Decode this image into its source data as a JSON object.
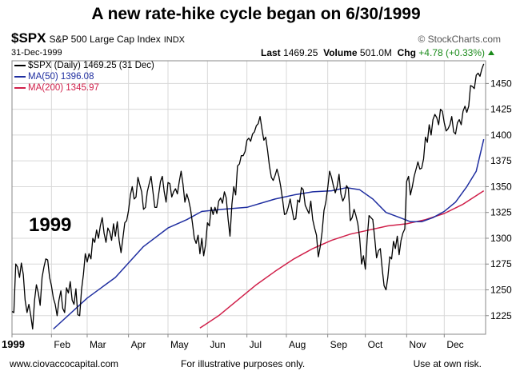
{
  "header": {
    "title": "A new rate-hike cycle began on 6/30/1999",
    "symbol": "$SPX",
    "name": "S&P 500 Large Cap Index",
    "exchange": "INDX",
    "credit": "© StockCharts.com",
    "date": "31-Dec-1999",
    "last_label": "Last",
    "last_value": "1469.25",
    "volume_label": "Volume",
    "volume_value": "501.0M",
    "chg_label": "Chg",
    "chg_value": "+4.78 (+0.33%)"
  },
  "legend": {
    "price": "$SPX (Daily) 1469.25 (31 Dec)",
    "ma50": "MA(50) 1396.08",
    "ma200": "MA(200) 1345.97"
  },
  "annotation": "1999",
  "footer": {
    "left": "www.ciovaccocapital.com",
    "center": "For illustrative purposes only.",
    "right": "Use at own risk."
  },
  "colors": {
    "price": "#000000",
    "ma50": "#1f2ea0",
    "ma200": "#d0204a",
    "grid": "#d8d8d8",
    "up": "#1a8a1a"
  },
  "chart_data": {
    "type": "line",
    "x_ticks": [
      "1999",
      "Feb",
      "Mar",
      "Apr",
      "May",
      "Jun",
      "Jul",
      "Aug",
      "Sep",
      "Oct",
      "Nov",
      "Dec"
    ],
    "x_tick_days": [
      0,
      21,
      40,
      62,
      83,
      104,
      125,
      146,
      168,
      188,
      210,
      230
    ],
    "x_range": [
      0,
      252
    ],
    "y_ticks": [
      1225,
      1250,
      1275,
      1300,
      1325,
      1350,
      1375,
      1400,
      1425,
      1450
    ],
    "ylim": [
      1207,
      1472
    ],
    "grid": true,
    "series": [
      {
        "name": "$SPX (Daily)",
        "key": "price",
        "points": [
          [
            0,
            1229
          ],
          [
            1,
            1228
          ],
          [
            2,
            1275
          ],
          [
            3,
            1272
          ],
          [
            4,
            1262
          ],
          [
            5,
            1276
          ],
          [
            6,
            1265
          ],
          [
            7,
            1240
          ],
          [
            8,
            1228
          ],
          [
            9,
            1236
          ],
          [
            10,
            1225
          ],
          [
            11,
            1212
          ],
          [
            12,
            1240
          ],
          [
            13,
            1255
          ],
          [
            14,
            1247
          ],
          [
            15,
            1235
          ],
          [
            16,
            1262
          ],
          [
            17,
            1272
          ],
          [
            18,
            1280
          ],
          [
            19,
            1279
          ],
          [
            20,
            1262
          ],
          [
            21,
            1254
          ],
          [
            22,
            1242
          ],
          [
            23,
            1236
          ],
          [
            24,
            1225
          ],
          [
            25,
            1240
          ],
          [
            26,
            1249
          ],
          [
            27,
            1232
          ],
          [
            28,
            1228
          ],
          [
            29,
            1252
          ],
          [
            30,
            1247
          ],
          [
            31,
            1258
          ],
          [
            32,
            1240
          ],
          [
            33,
            1236
          ],
          [
            34,
            1251
          ],
          [
            35,
            1226
          ],
          [
            36,
            1225
          ],
          [
            37,
            1250
          ],
          [
            38,
            1265
          ],
          [
            39,
            1285
          ],
          [
            40,
            1277
          ],
          [
            41,
            1285
          ],
          [
            42,
            1280
          ],
          [
            43,
            1300
          ],
          [
            44,
            1296
          ],
          [
            45,
            1308
          ],
          [
            46,
            1300
          ],
          [
            47,
            1312
          ],
          [
            48,
            1320
          ],
          [
            49,
            1305
          ],
          [
            50,
            1296
          ],
          [
            51,
            1310
          ],
          [
            52,
            1306
          ],
          [
            53,
            1298
          ],
          [
            54,
            1314
          ],
          [
            55,
            1302
          ],
          [
            56,
            1316
          ],
          [
            57,
            1298
          ],
          [
            58,
            1286
          ],
          [
            59,
            1300
          ],
          [
            60,
            1315
          ],
          [
            61,
            1317
          ],
          [
            62,
            1327
          ],
          [
            63,
            1342
          ],
          [
            64,
            1350
          ],
          [
            65,
            1338
          ],
          [
            66,
            1340
          ],
          [
            67,
            1359
          ],
          [
            68,
            1352
          ],
          [
            69,
            1345
          ],
          [
            70,
            1328
          ],
          [
            71,
            1330
          ],
          [
            72,
            1345
          ],
          [
            73,
            1353
          ],
          [
            74,
            1360
          ],
          [
            75,
            1345
          ],
          [
            76,
            1330
          ],
          [
            77,
            1330
          ],
          [
            78,
            1342
          ],
          [
            79,
            1355
          ],
          [
            80,
            1360
          ],
          [
            81,
            1345
          ],
          [
            82,
            1335
          ],
          [
            83,
            1354
          ],
          [
            84,
            1353
          ],
          [
            85,
            1340
          ],
          [
            86,
            1345
          ],
          [
            87,
            1348
          ],
          [
            88,
            1343
          ],
          [
            89,
            1355
          ],
          [
            90,
            1365
          ],
          [
            91,
            1352
          ],
          [
            92,
            1335
          ],
          [
            93,
            1343
          ],
          [
            94,
            1337
          ],
          [
            95,
            1328
          ],
          [
            96,
            1315
          ],
          [
            97,
            1300
          ],
          [
            98,
            1295
          ],
          [
            99,
            1303
          ],
          [
            100,
            1285
          ],
          [
            101,
            1300
          ],
          [
            102,
            1283
          ],
          [
            103,
            1294
          ],
          [
            104,
            1315
          ],
          [
            105,
            1312
          ],
          [
            106,
            1330
          ],
          [
            107,
            1323
          ],
          [
            108,
            1330
          ],
          [
            109,
            1324
          ],
          [
            110,
            1336
          ],
          [
            111,
            1339
          ],
          [
            112,
            1334
          ],
          [
            113,
            1345
          ],
          [
            114,
            1339
          ],
          [
            115,
            1318
          ],
          [
            116,
            1302
          ],
          [
            117,
            1333
          ],
          [
            118,
            1350
          ],
          [
            119,
            1342
          ],
          [
            120,
            1370
          ],
          [
            121,
            1372
          ],
          [
            122,
            1380
          ],
          [
            123,
            1380
          ],
          [
            124,
            1384
          ],
          [
            125,
            1395
          ],
          [
            126,
            1397
          ],
          [
            127,
            1394
          ],
          [
            128,
            1401
          ],
          [
            129,
            1403
          ],
          [
            130,
            1409
          ],
          [
            131,
            1411
          ],
          [
            132,
            1418
          ],
          [
            133,
            1406
          ],
          [
            134,
            1395
          ],
          [
            135,
            1398
          ],
          [
            136,
            1385
          ],
          [
            137,
            1370
          ],
          [
            138,
            1359
          ],
          [
            139,
            1356
          ],
          [
            140,
            1361
          ],
          [
            141,
            1367
          ],
          [
            142,
            1360
          ],
          [
            143,
            1350
          ],
          [
            144,
            1337
          ],
          [
            145,
            1323
          ],
          [
            146,
            1324
          ],
          [
            147,
            1330
          ],
          [
            148,
            1338
          ],
          [
            149,
            1328
          ],
          [
            150,
            1318
          ],
          [
            151,
            1319
          ],
          [
            152,
            1337
          ],
          [
            153,
            1335
          ],
          [
            154,
            1349
          ],
          [
            155,
            1347
          ],
          [
            156,
            1332
          ],
          [
            157,
            1328
          ],
          [
            158,
            1324
          ],
          [
            159,
            1336
          ],
          [
            160,
            1318
          ],
          [
            161,
            1310
          ],
          [
            162,
            1303
          ],
          [
            163,
            1282
          ],
          [
            164,
            1292
          ],
          [
            165,
            1306
          ],
          [
            166,
            1327
          ],
          [
            167,
            1335
          ],
          [
            168,
            1349
          ],
          [
            169,
            1365
          ],
          [
            170,
            1359
          ],
          [
            171,
            1351
          ],
          [
            172,
            1344
          ],
          [
            173,
            1350
          ],
          [
            174,
            1362
          ],
          [
            175,
            1343
          ],
          [
            176,
            1336
          ],
          [
            177,
            1340
          ],
          [
            178,
            1351
          ],
          [
            179,
            1348
          ],
          [
            180,
            1317
          ],
          [
            181,
            1320
          ],
          [
            182,
            1328
          ],
          [
            183,
            1322
          ],
          [
            184,
            1314
          ],
          [
            185,
            1300
          ],
          [
            186,
            1275
          ],
          [
            187,
            1283
          ],
          [
            188,
            1270
          ],
          [
            189,
            1300
          ],
          [
            190,
            1322
          ],
          [
            191,
            1320
          ],
          [
            192,
            1318
          ],
          [
            193,
            1300
          ],
          [
            194,
            1281
          ],
          [
            195,
            1288
          ],
          [
            196,
            1290
          ],
          [
            197,
            1270
          ],
          [
            198,
            1254
          ],
          [
            199,
            1250
          ],
          [
            200,
            1262
          ],
          [
            201,
            1282
          ],
          [
            202,
            1280
          ],
          [
            203,
            1297
          ],
          [
            204,
            1290
          ],
          [
            205,
            1302
          ],
          [
            206,
            1284
          ],
          [
            207,
            1298
          ],
          [
            208,
            1305
          ],
          [
            209,
            1309
          ],
          [
            210,
            1355
          ],
          [
            211,
            1360
          ],
          [
            212,
            1342
          ],
          [
            213,
            1350
          ],
          [
            214,
            1360
          ],
          [
            215,
            1367
          ],
          [
            216,
            1374
          ],
          [
            217,
            1367
          ],
          [
            218,
            1368
          ],
          [
            219,
            1377
          ],
          [
            220,
            1398
          ],
          [
            221,
            1393
          ],
          [
            222,
            1410
          ],
          [
            223,
            1400
          ],
          [
            224,
            1415
          ],
          [
            225,
            1420
          ],
          [
            226,
            1417
          ],
          [
            227,
            1410
          ],
          [
            228,
            1425
          ],
          [
            229,
            1423
          ],
          [
            230,
            1412
          ],
          [
            231,
            1404
          ],
          [
            232,
            1406
          ],
          [
            233,
            1410
          ],
          [
            234,
            1418
          ],
          [
            235,
            1403
          ],
          [
            236,
            1401
          ],
          [
            237,
            1412
          ],
          [
            238,
            1415
          ],
          [
            239,
            1410
          ],
          [
            240,
            1423
          ],
          [
            241,
            1428
          ],
          [
            242,
            1422
          ],
          [
            243,
            1428
          ],
          [
            244,
            1448
          ],
          [
            245,
            1447
          ],
          [
            246,
            1445
          ],
          [
            247,
            1458
          ],
          [
            248,
            1460
          ],
          [
            249,
            1457
          ],
          [
            250,
            1464
          ],
          [
            251,
            1469
          ]
        ]
      },
      {
        "name": "MA(50)",
        "key": "ma50",
        "points": [
          [
            22,
            1212
          ],
          [
            40,
            1242
          ],
          [
            55,
            1262
          ],
          [
            70,
            1292
          ],
          [
            83,
            1310
          ],
          [
            93,
            1318
          ],
          [
            101,
            1326
          ],
          [
            112,
            1328
          ],
          [
            125,
            1330
          ],
          [
            140,
            1338
          ],
          [
            150,
            1342
          ],
          [
            160,
            1345
          ],
          [
            170,
            1346
          ],
          [
            178,
            1349
          ],
          [
            185,
            1347
          ],
          [
            192,
            1338
          ],
          [
            199,
            1325
          ],
          [
            205,
            1321
          ],
          [
            212,
            1316
          ],
          [
            218,
            1316
          ],
          [
            224,
            1320
          ],
          [
            230,
            1326
          ],
          [
            236,
            1335
          ],
          [
            242,
            1350
          ],
          [
            247,
            1365
          ],
          [
            251,
            1396
          ]
        ]
      },
      {
        "name": "MA(200)",
        "key": "ma200",
        "points": [
          [
            100,
            1213
          ],
          [
            110,
            1225
          ],
          [
            120,
            1240
          ],
          [
            130,
            1255
          ],
          [
            140,
            1268
          ],
          [
            150,
            1280
          ],
          [
            160,
            1290
          ],
          [
            170,
            1298
          ],
          [
            180,
            1304
          ],
          [
            190,
            1308
          ],
          [
            200,
            1312
          ],
          [
            210,
            1314
          ],
          [
            220,
            1318
          ],
          [
            230,
            1324
          ],
          [
            240,
            1333
          ],
          [
            251,
            1346
          ]
        ]
      }
    ]
  }
}
